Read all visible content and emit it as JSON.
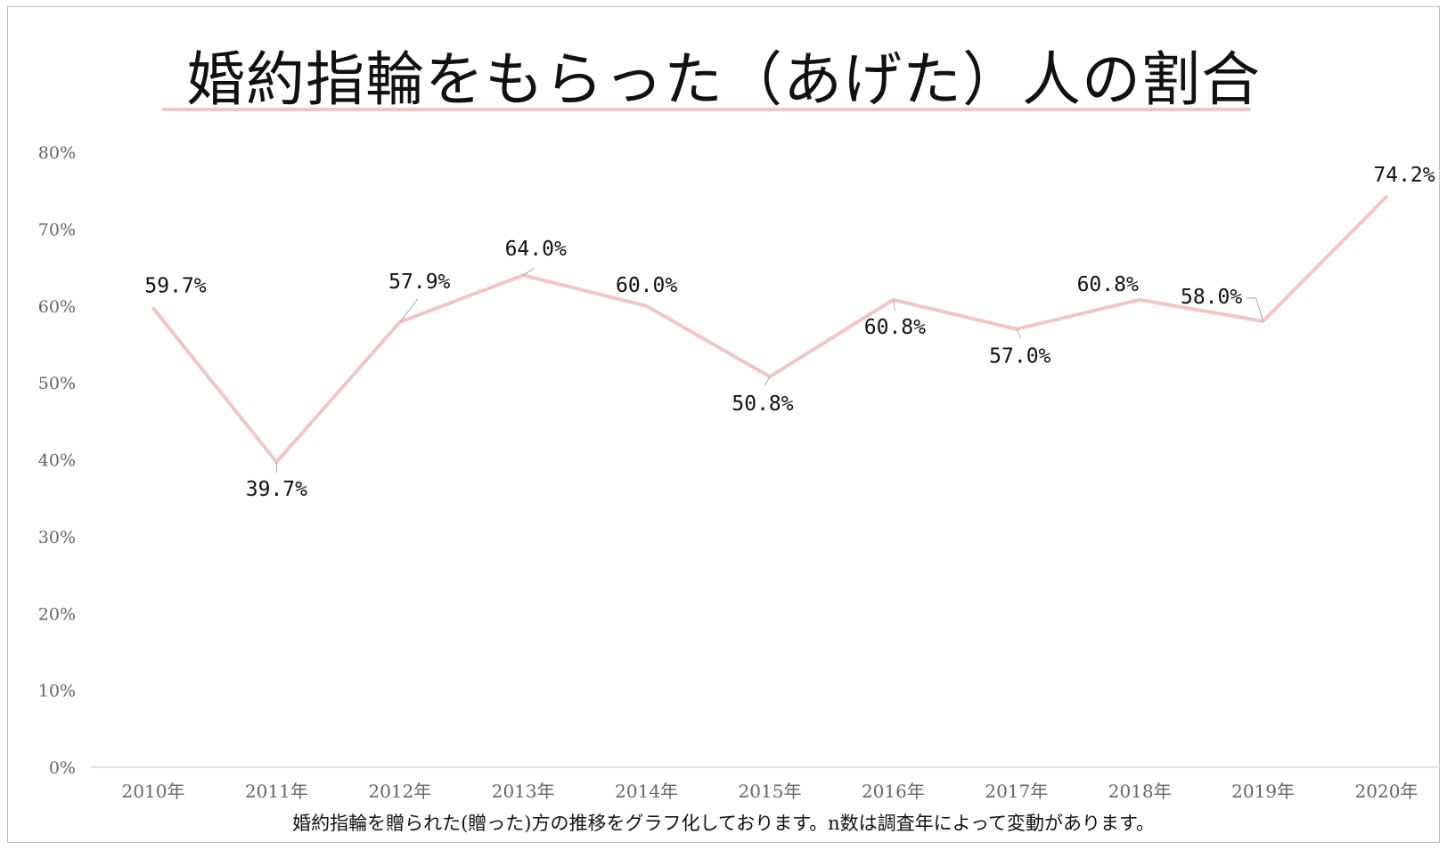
{
  "title": "婚約指輪をもらった（あげた）人の割合",
  "note": "婚約指輪を贈られた(贈った)方の推移をグラフ化しております。n数は調査年によって変動があります。",
  "colors": {
    "line": "#f4c4c4",
    "axis": "#d9d9d9",
    "tick_text": "#666666",
    "label_text": "#111111",
    "leader": "#a6a6a6"
  },
  "chart_data": {
    "type": "line",
    "title": "婚約指輪をもらった（あげた）人の割合",
    "categories": [
      "2010年",
      "2011年",
      "2012年",
      "2013年",
      "2014年",
      "2015年",
      "2016年",
      "2017年",
      "2018年",
      "2019年",
      "2020年"
    ],
    "values": [
      59.7,
      39.7,
      57.9,
      64.0,
      60.0,
      50.8,
      60.8,
      57.0,
      60.8,
      58.0,
      74.2
    ],
    "data_labels": [
      "59.7%",
      "39.7%",
      "57.9%",
      "64.0%",
      "60.0%",
      "50.8%",
      "60.8%",
      "57.0%",
      "60.8%",
      "58.0%",
      "74.2%"
    ],
    "y_ticks": [
      "0%",
      "10%",
      "20%",
      "30%",
      "40%",
      "50%",
      "60%",
      "70%",
      "80%"
    ],
    "ylim": [
      0,
      80
    ],
    "xlabel": "",
    "ylabel": "",
    "grid": false,
    "legend": "none"
  }
}
